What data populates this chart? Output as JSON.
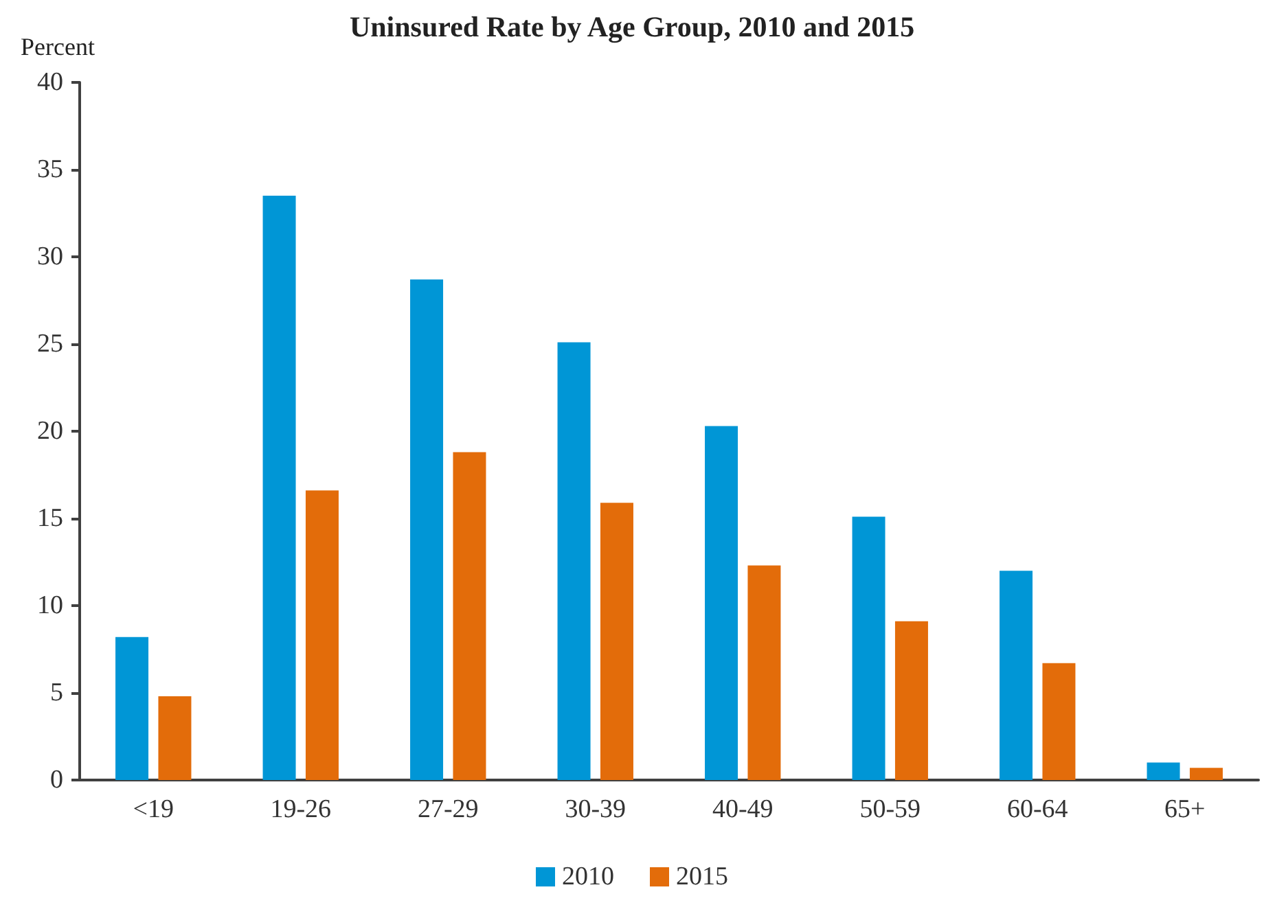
{
  "chart_data": {
    "type": "bar",
    "title": "Uninsured Rate by Age Group, 2010 and 2015",
    "ylabel": "Percent",
    "categories": [
      "<19",
      "19-26",
      "27-29",
      "30-39",
      "40-49",
      "50-59",
      "60-64",
      "65+"
    ],
    "series": [
      {
        "name": "2010",
        "color": "#0096d6",
        "values": [
          8.2,
          33.5,
          28.7,
          25.1,
          20.3,
          15.1,
          12.0,
          1.0
        ]
      },
      {
        "name": "2015",
        "color": "#e36c0a",
        "values": [
          4.8,
          16.6,
          18.8,
          15.9,
          12.3,
          9.1,
          6.7,
          0.7
        ]
      }
    ],
    "ylim": [
      0,
      40
    ],
    "yticks": [
      0,
      5,
      10,
      15,
      20,
      25,
      30,
      35,
      40
    ],
    "grid": false,
    "legend": "bottom"
  }
}
